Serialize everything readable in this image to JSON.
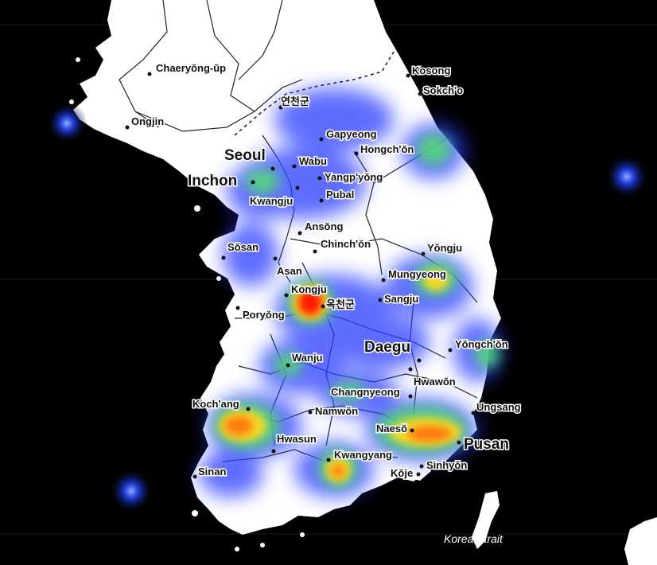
{
  "map": {
    "background_color": "#000000",
    "land_color": "#ffffff",
    "border_color": "#222222",
    "heat_colors": [
      "#1a2bff",
      "#3fe060",
      "#ffe020",
      "#ff7a00",
      "#ff0000"
    ],
    "places": [
      {
        "id": "chaeryong",
        "name": "Chaeryŏng-ŭp"
      },
      {
        "id": "ongjin",
        "name": "Ongjin"
      },
      {
        "id": "kosong",
        "name": "Kosong"
      },
      {
        "id": "sokcho",
        "name": "Sokch'o"
      },
      {
        "id": "yeoncheon",
        "name": "연천군"
      },
      {
        "id": "gapyeong",
        "name": "Gapyeong"
      },
      {
        "id": "hongchon",
        "name": "Hongch'ŏn"
      },
      {
        "id": "seoul",
        "name": "Seoul"
      },
      {
        "id": "wabu",
        "name": "Wabu"
      },
      {
        "id": "inchon",
        "name": "Inchon"
      },
      {
        "id": "yangpyong",
        "name": "Yangp'yŏng"
      },
      {
        "id": "kwangju",
        "name": "Kwangju"
      },
      {
        "id": "pubal",
        "name": "Pubal"
      },
      {
        "id": "ansong",
        "name": "Ansŏng"
      },
      {
        "id": "sosan",
        "name": "Sŏsan"
      },
      {
        "id": "chinchon",
        "name": "Chinch'ŏn"
      },
      {
        "id": "yongju",
        "name": "Yŏngju"
      },
      {
        "id": "asan",
        "name": "Asan"
      },
      {
        "id": "mungyeong",
        "name": "Mungyeong"
      },
      {
        "id": "kongju",
        "name": "Kongju"
      },
      {
        "id": "okcheon",
        "name": "옥천군"
      },
      {
        "id": "sangju",
        "name": "Sangju"
      },
      {
        "id": "poryong",
        "name": "Poryŏng"
      },
      {
        "id": "daegu",
        "name": "Daegu"
      },
      {
        "id": "yongchon",
        "name": "Yŏngch'ŏn"
      },
      {
        "id": "wanju",
        "name": "Wanju"
      },
      {
        "id": "hwawon",
        "name": "Hwawŏn"
      },
      {
        "id": "changnyeong",
        "name": "Changnyeong"
      },
      {
        "id": "kochang",
        "name": "Koch'ang"
      },
      {
        "id": "namwon",
        "name": "Namwŏn"
      },
      {
        "id": "ungsang",
        "name": "Ungsang"
      },
      {
        "id": "naeso",
        "name": "Naesŏ"
      },
      {
        "id": "pusan",
        "name": "Pusan"
      },
      {
        "id": "hwasun",
        "name": "Hwasun"
      },
      {
        "id": "kwangyang",
        "name": "Kwangyang"
      },
      {
        "id": "sinhyon",
        "name": "Sinhyŏn"
      },
      {
        "id": "sinan",
        "name": "Sinan"
      },
      {
        "id": "koje",
        "name": "Kŏje"
      },
      {
        "id": "korea_strait",
        "name": "Korea Strait"
      }
    ],
    "heat_spots": [
      {
        "id": "kongju-hotspot",
        "intensity": 1.0
      },
      {
        "id": "kochang-hotspot",
        "intensity": 0.8
      },
      {
        "id": "naeso-pusan-hotspot",
        "intensity": 0.8
      },
      {
        "id": "kwangyang-hotspot",
        "intensity": 0.7
      },
      {
        "id": "mungyeong-hotspot",
        "intensity": 0.6
      },
      {
        "id": "sokcho-coast-hotspot",
        "intensity": 0.5
      },
      {
        "id": "wanju-hotspot",
        "intensity": 0.45
      },
      {
        "id": "inchon-hotspot",
        "intensity": 0.45
      },
      {
        "id": "yongchon-hotspot",
        "intensity": 0.4
      },
      {
        "id": "changnyeong-hotspot",
        "intensity": 0.35
      },
      {
        "id": "ongjin-island-hotspot",
        "intensity": 0.2
      },
      {
        "id": "east-sea-hotspot",
        "intensity": 0.2
      },
      {
        "id": "sinan-sea-hotspot",
        "intensity": 0.2
      }
    ]
  }
}
